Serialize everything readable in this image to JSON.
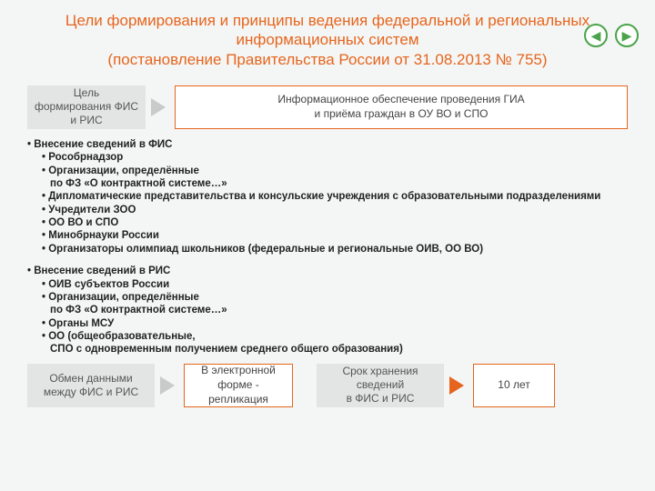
{
  "title": {
    "line1": "Цели формирования и принципы ведения федеральной и региональных информационных систем",
    "line2": "(постановление Правительства России от 31.08.2013 № 755)"
  },
  "nav": {
    "prev_glyph": "◀",
    "next_glyph": "▶"
  },
  "row_goal": {
    "label": "Цель формирования ФИС и РИС",
    "value": "Информационное обеспечение проведения ГИА\nи приёма граждан в ОУ ВО и СПО"
  },
  "fis_header": "Внесение сведений в ФИС",
  "fis_items": [
    "Рособрнадзор",
    "Организации, определённые\nпо ФЗ «О контрактной системе…»",
    "Дипломатические представительства и консульские учреждения с образовательными подразделениями",
    "Учредители ЗОО",
    "ОО ВО и СПО",
    "Минобрнауки России",
    "Организаторы олимпиад школьников (федеральные и региональные ОИВ, ОО ВО)"
  ],
  "ris_header": "Внесение сведений в РИС",
  "ris_items": [
    "ОИВ субъектов России",
    "Организации, определённые\nпо ФЗ «О контрактной системе…»",
    "Органы МСУ",
    "ОО (общеобразовательные,\nСПО с одновременным получением среднего общего образования)"
  ],
  "row_exchange": {
    "label": "Обмен данными между ФИС и РИС",
    "value": "В электронной форме - репликация"
  },
  "row_retention": {
    "label": "Срок хранения сведений\nв ФИС и РИС",
    "value": "10 лет"
  },
  "colors": {
    "accent_orange": "#e6651e",
    "grey_box": "#e3e5e4",
    "arrow_grey": "#c9cbca",
    "nav_green": "#4aa34a"
  }
}
